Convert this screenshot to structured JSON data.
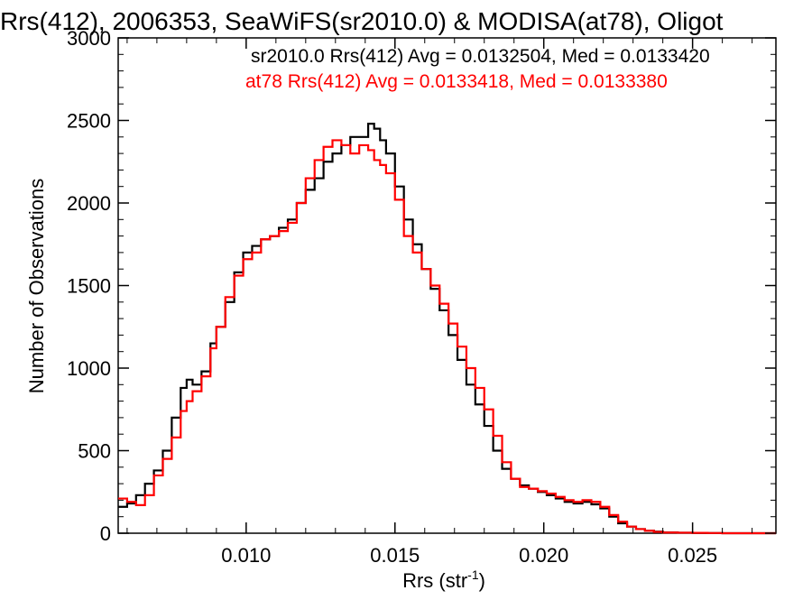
{
  "chart_data": {
    "type": "line",
    "title": "Rrs(412), 2006353, SeaWiFS(sr2010.0) & MODISA(at78), Oligot",
    "xlabel_main": "Rrs (str",
    "xlabel_sup": "-1",
    "xlabel_end": ")",
    "ylabel": "Number of Observations",
    "xlim": [
      0.0057,
      0.0278
    ],
    "ylim": [
      0,
      3000
    ],
    "xticks": [
      "0.010",
      "0.015",
      "0.020",
      "0.025"
    ],
    "yticks": [
      "0",
      "500",
      "1000",
      "1500",
      "2000",
      "2500",
      "3000"
    ],
    "grid": false,
    "legend_position": "top-right",
    "annotations": [
      {
        "text": "sr2010.0 Rrs(412) Avg = 0.0132504, Med = 0.0133420",
        "color": "#000000"
      },
      {
        "text": "at78 Rrs(412) Avg = 0.0133418, Med = 0.0133380",
        "color": "#ff0000"
      }
    ],
    "series": [
      {
        "color": "#000000",
        "x": [
          0.0057,
          0.006,
          0.0063,
          0.0066,
          0.0069,
          0.0072,
          0.0075,
          0.0078,
          0.008,
          0.0082,
          0.0085,
          0.0088,
          0.009,
          0.0093,
          0.0096,
          0.0099,
          0.0102,
          0.0105,
          0.0108,
          0.0111,
          0.0114,
          0.0117,
          0.012,
          0.0123,
          0.0126,
          0.0129,
          0.0132,
          0.0135,
          0.0138,
          0.0141,
          0.0143,
          0.0145,
          0.0147,
          0.015,
          0.0153,
          0.0156,
          0.0159,
          0.0162,
          0.0165,
          0.0168,
          0.0171,
          0.0174,
          0.0177,
          0.018,
          0.0183,
          0.0186,
          0.0189,
          0.0192,
          0.0195,
          0.0198,
          0.0201,
          0.0204,
          0.0207,
          0.021,
          0.0213,
          0.0216,
          0.0219,
          0.0222,
          0.0225,
          0.0228,
          0.0231,
          0.0234,
          0.0237,
          0.024,
          0.0245,
          0.025,
          0.0255,
          0.026,
          0.0265,
          0.027,
          0.0278
        ],
        "y": [
          160,
          180,
          230,
          300,
          380,
          500,
          700,
          880,
          930,
          900,
          980,
          1150,
          1250,
          1400,
          1580,
          1700,
          1740,
          1780,
          1800,
          1850,
          1900,
          2000,
          2080,
          2150,
          2250,
          2300,
          2350,
          2400,
          2400,
          2480,
          2450,
          2380,
          2300,
          2100,
          1900,
          1750,
          1600,
          1480,
          1350,
          1200,
          1050,
          900,
          780,
          650,
          500,
          390,
          330,
          290,
          270,
          250,
          230,
          210,
          190,
          180,
          190,
          175,
          150,
          100,
          60,
          40,
          25,
          15,
          10,
          5,
          3,
          2,
          1,
          0,
          0,
          0,
          0
        ]
      },
      {
        "color": "#ff0000",
        "x": [
          0.0057,
          0.006,
          0.0063,
          0.0066,
          0.0069,
          0.0072,
          0.0075,
          0.0078,
          0.008,
          0.0082,
          0.0085,
          0.0088,
          0.009,
          0.0093,
          0.0096,
          0.0099,
          0.0102,
          0.0105,
          0.0108,
          0.0111,
          0.0114,
          0.0117,
          0.012,
          0.0123,
          0.0126,
          0.0129,
          0.0132,
          0.0135,
          0.0138,
          0.0141,
          0.0143,
          0.0145,
          0.0147,
          0.015,
          0.0153,
          0.0156,
          0.0159,
          0.0162,
          0.0165,
          0.0168,
          0.0171,
          0.0174,
          0.0177,
          0.018,
          0.0183,
          0.0186,
          0.0189,
          0.0192,
          0.0195,
          0.0198,
          0.0201,
          0.0204,
          0.0207,
          0.021,
          0.0213,
          0.0216,
          0.0219,
          0.0222,
          0.0225,
          0.0228,
          0.0231,
          0.0234,
          0.0237,
          0.024,
          0.0245,
          0.025,
          0.0255,
          0.026,
          0.0265,
          0.027,
          0.0278
        ],
        "y": [
          210,
          190,
          170,
          230,
          350,
          450,
          580,
          740,
          800,
          860,
          950,
          1120,
          1250,
          1430,
          1560,
          1660,
          1700,
          1780,
          1800,
          1830,
          1880,
          2000,
          2150,
          2260,
          2340,
          2380,
          2350,
          2300,
          2350,
          2320,
          2260,
          2230,
          2180,
          2020,
          1800,
          1700,
          1600,
          1500,
          1390,
          1270,
          1130,
          1000,
          880,
          750,
          590,
          430,
          330,
          280,
          270,
          255,
          240,
          220,
          200,
          190,
          200,
          190,
          160,
          110,
          70,
          40,
          25,
          15,
          8,
          4,
          3,
          2,
          1,
          0,
          0,
          0,
          0
        ]
      }
    ]
  }
}
